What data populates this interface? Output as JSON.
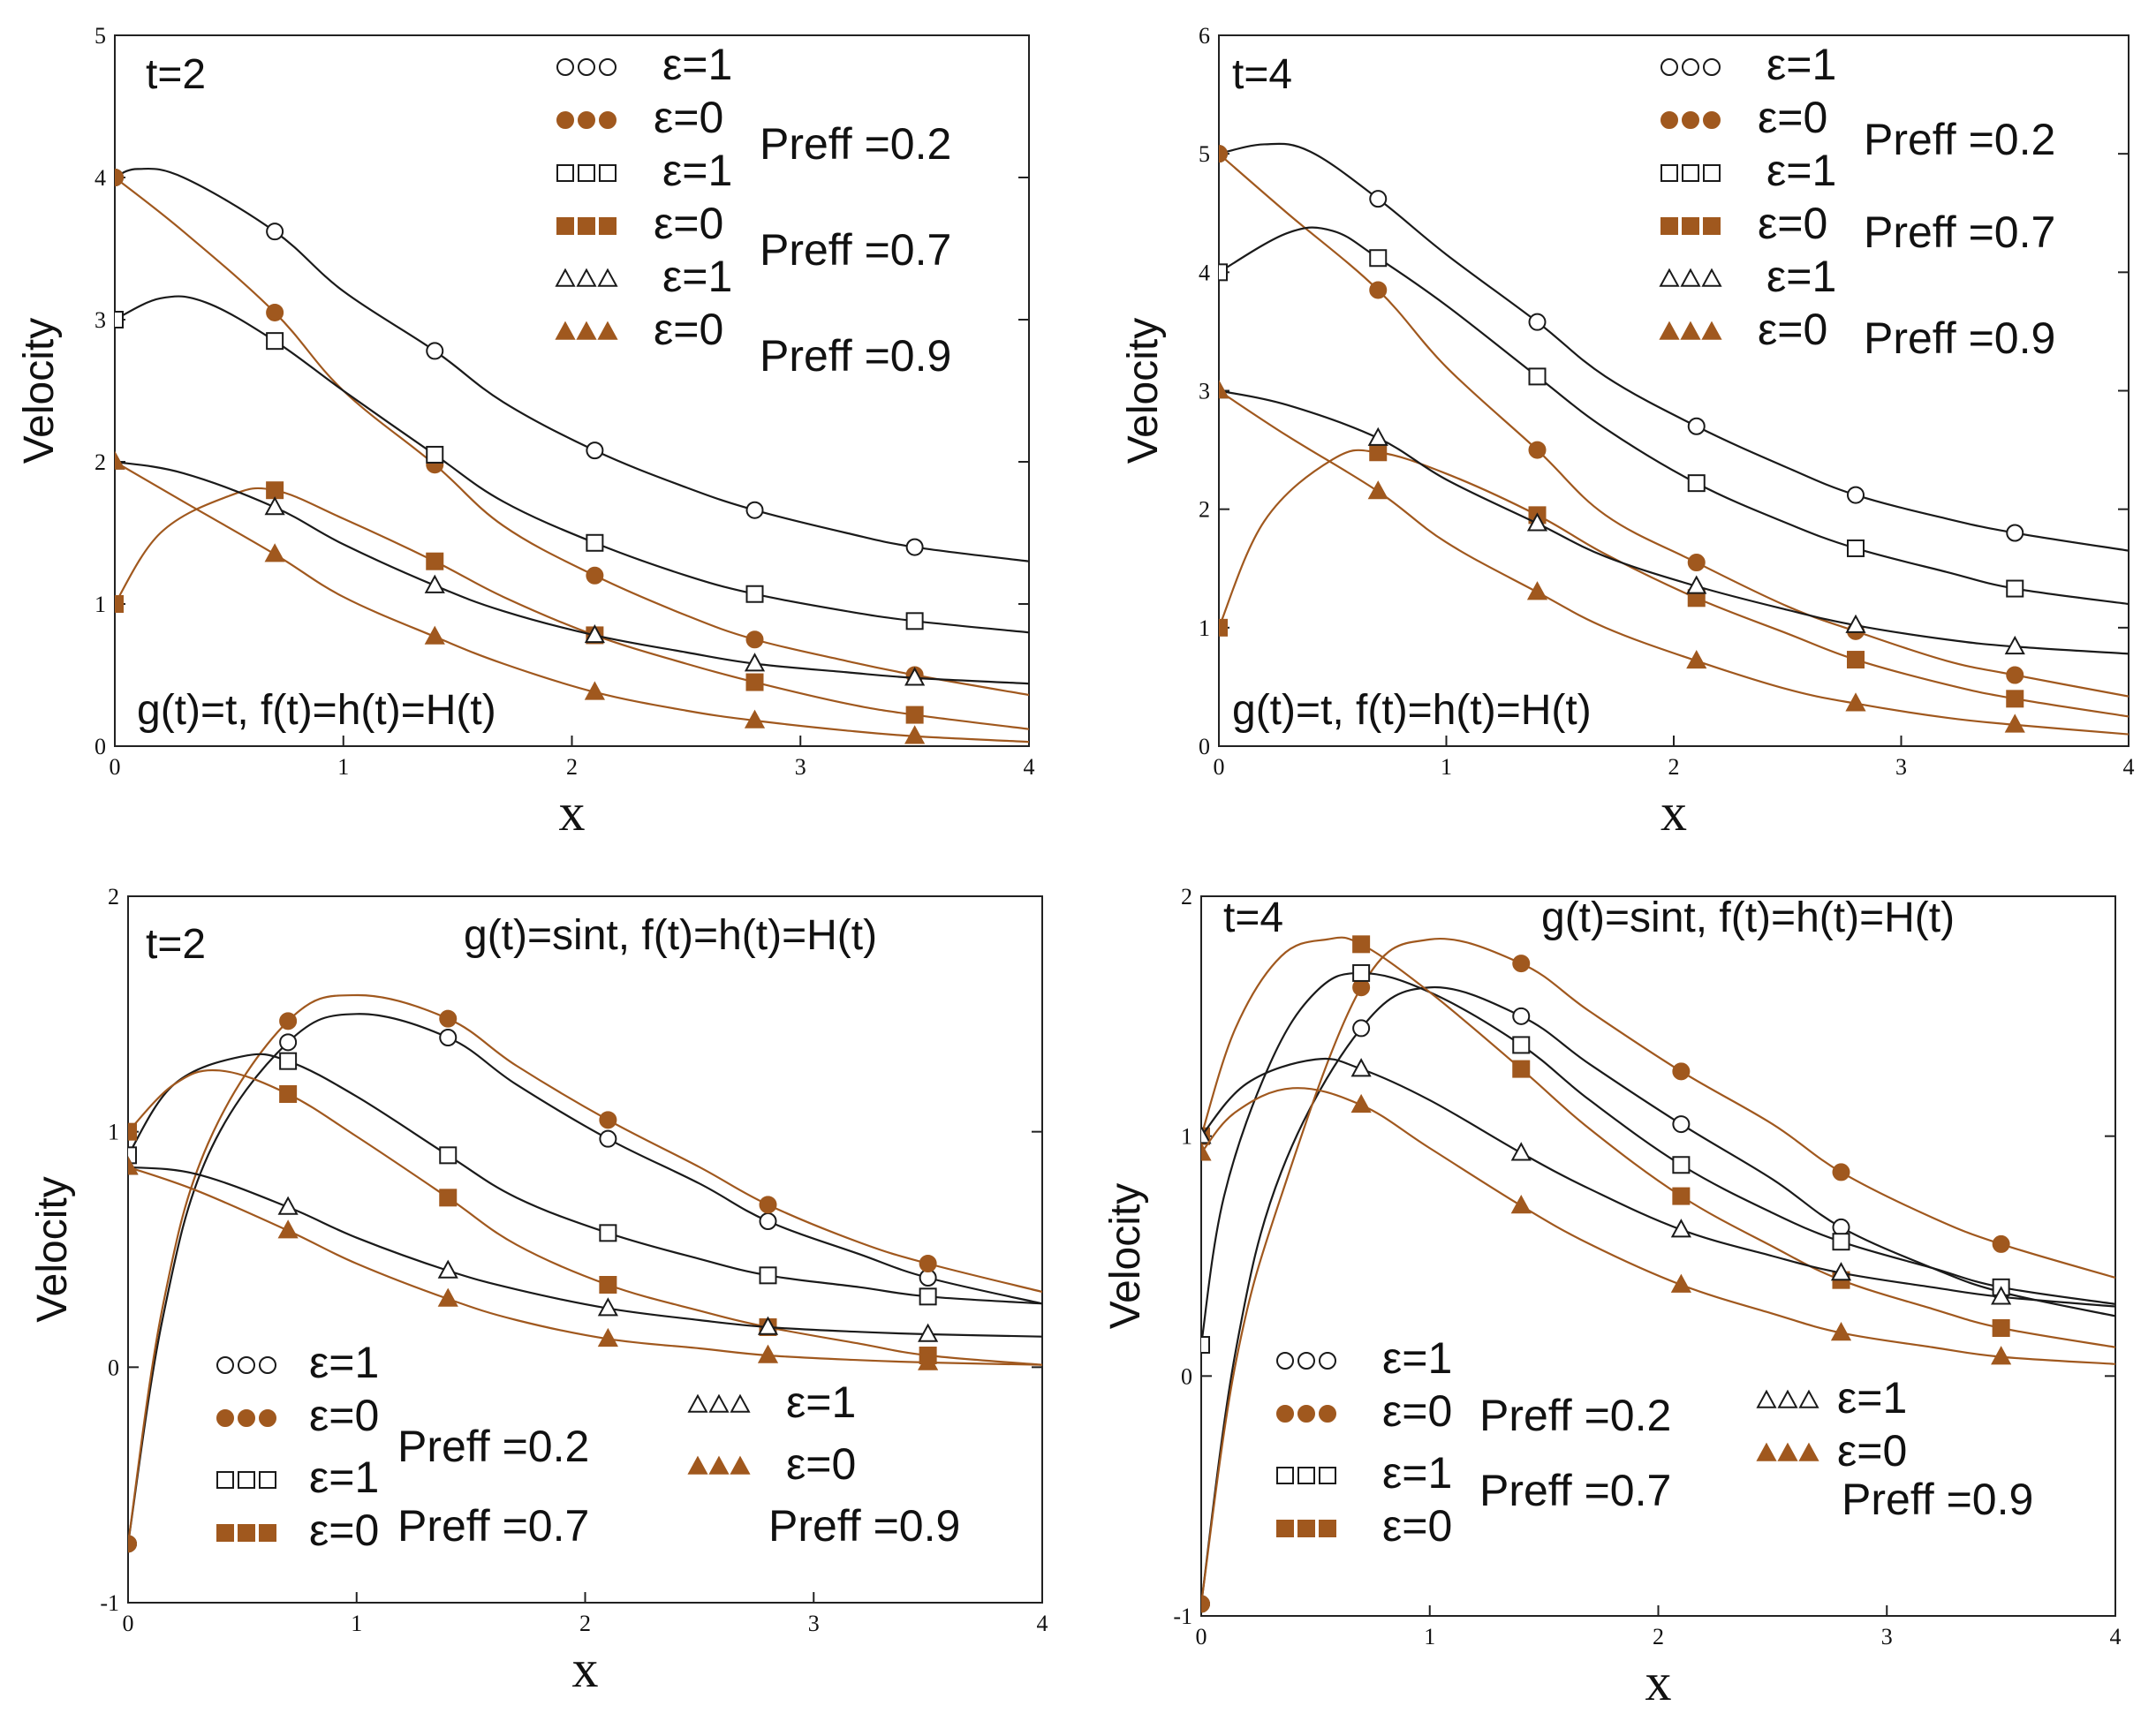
{
  "figure": {
    "colors": {
      "black": "#1a1a1a",
      "brown": "#a0581e"
    },
    "marker_names": {
      "circle-open": "circle",
      "circle-filled": "filled circle",
      "square-open": "square",
      "square-filled": "filled square",
      "triangle-open": "triangle",
      "triangle-filled": "filled triangle"
    }
  },
  "chart_data": [
    {
      "type": "line",
      "title": "t=2",
      "annotation": "g(t)=t, f(t)=h(t)=H(t)",
      "xlabel": "x",
      "ylabel": "Velocity",
      "xlim": [
        0,
        4
      ],
      "ylim": [
        0,
        5
      ],
      "xticks": [
        "0",
        "1",
        "2",
        "3",
        "4"
      ],
      "yticks": [
        "0",
        "1",
        "2",
        "3",
        "4",
        "5"
      ],
      "legend_position": "top-right",
      "pr_groups": [
        {
          "label": "Preff =0.2",
          "series_indices": [
            0,
            1
          ]
        },
        {
          "label": "Preff =0.7",
          "series_indices": [
            2,
            3
          ]
        },
        {
          "label": "Preff =0.9",
          "series_indices": [
            4,
            5
          ]
        }
      ],
      "series": [
        {
          "name": "ε=1",
          "color": "black",
          "marker": "circle-open",
          "x": [
            0,
            0.1,
            0.3,
            0.7,
            1.0,
            1.4,
            1.7,
            2.1,
            2.5,
            2.8,
            3.2,
            3.5,
            4.0
          ],
          "y": [
            4.0,
            4.06,
            4.0,
            3.62,
            3.2,
            2.78,
            2.42,
            2.08,
            1.82,
            1.66,
            1.5,
            1.4,
            1.3
          ]
        },
        {
          "name": "ε=0",
          "color": "brown",
          "marker": "circle-filled",
          "x": [
            0,
            0.3,
            0.7,
            1.0,
            1.4,
            1.7,
            2.1,
            2.5,
            2.8,
            3.2,
            3.5,
            4.0
          ],
          "y": [
            4.0,
            3.62,
            3.05,
            2.5,
            1.98,
            1.55,
            1.2,
            0.92,
            0.75,
            0.6,
            0.5,
            0.36
          ]
        },
        {
          "name": "ε=1",
          "color": "black",
          "marker": "square-open",
          "x": [
            0,
            0.2,
            0.4,
            0.7,
            1.0,
            1.4,
            1.7,
            2.1,
            2.5,
            2.8,
            3.2,
            3.5,
            4.0
          ],
          "y": [
            3.0,
            3.15,
            3.12,
            2.85,
            2.5,
            2.05,
            1.72,
            1.43,
            1.2,
            1.07,
            0.95,
            0.88,
            0.8
          ]
        },
        {
          "name": "ε=0",
          "color": "brown",
          "marker": "square-filled",
          "x": [
            0,
            0.2,
            0.5,
            0.7,
            1.0,
            1.4,
            1.7,
            2.1,
            2.5,
            2.8,
            3.2,
            3.5,
            4.0
          ],
          "y": [
            1.0,
            1.5,
            1.76,
            1.8,
            1.6,
            1.3,
            1.05,
            0.78,
            0.58,
            0.45,
            0.3,
            0.22,
            0.12
          ]
        },
        {
          "name": "ε=1",
          "color": "black",
          "marker": "triangle-open",
          "x": [
            0,
            0.3,
            0.7,
            1.0,
            1.4,
            1.7,
            2.1,
            2.5,
            2.8,
            3.2,
            3.5,
            4.0
          ],
          "y": [
            2.0,
            1.92,
            1.68,
            1.42,
            1.13,
            0.95,
            0.78,
            0.66,
            0.58,
            0.52,
            0.48,
            0.44
          ]
        },
        {
          "name": "ε=0",
          "color": "brown",
          "marker": "triangle-filled",
          "x": [
            0,
            0.3,
            0.7,
            1.0,
            1.4,
            1.7,
            2.1,
            2.5,
            2.8,
            3.2,
            3.5,
            4.0
          ],
          "y": [
            2.0,
            1.72,
            1.35,
            1.05,
            0.77,
            0.58,
            0.38,
            0.25,
            0.18,
            0.11,
            0.07,
            0.03
          ]
        }
      ]
    },
    {
      "type": "line",
      "title": "t=4",
      "annotation": "g(t)=t, f(t)=h(t)=H(t)",
      "xlabel": "x",
      "ylabel": "Velocity",
      "xlim": [
        0,
        4
      ],
      "ylim": [
        0,
        6
      ],
      "xticks": [
        "0",
        "1",
        "2",
        "3",
        "4"
      ],
      "yticks": [
        "0",
        "1",
        "2",
        "3",
        "4",
        "5",
        "6"
      ],
      "legend_position": "top-right",
      "pr_groups": [
        {
          "label": "Preff =0.2",
          "series_indices": [
            0,
            1
          ]
        },
        {
          "label": "Preff =0.7",
          "series_indices": [
            2,
            3
          ]
        },
        {
          "label": "Preff =0.9",
          "series_indices": [
            4,
            5
          ]
        }
      ],
      "series": [
        {
          "name": "ε=1",
          "color": "black",
          "marker": "circle-open",
          "x": [
            0,
            0.2,
            0.4,
            0.7,
            1.0,
            1.4,
            1.7,
            2.1,
            2.5,
            2.8,
            3.2,
            3.5,
            4.0
          ],
          "y": [
            5.0,
            5.08,
            5.02,
            4.62,
            4.15,
            3.58,
            3.12,
            2.7,
            2.35,
            2.12,
            1.92,
            1.8,
            1.65
          ]
        },
        {
          "name": "ε=0",
          "color": "brown",
          "marker": "circle-filled",
          "x": [
            0,
            0.3,
            0.7,
            1.0,
            1.4,
            1.7,
            2.1,
            2.5,
            2.8,
            3.2,
            3.5,
            4.0
          ],
          "y": [
            5.0,
            4.5,
            3.85,
            3.2,
            2.5,
            1.95,
            1.55,
            1.18,
            0.97,
            0.72,
            0.6,
            0.42
          ]
        },
        {
          "name": "ε=1",
          "color": "black",
          "marker": "square-open",
          "x": [
            0,
            0.3,
            0.5,
            0.7,
            1.0,
            1.4,
            1.7,
            2.1,
            2.5,
            2.8,
            3.2,
            3.5,
            4.0
          ],
          "y": [
            4.0,
            4.33,
            4.35,
            4.12,
            3.72,
            3.12,
            2.68,
            2.22,
            1.88,
            1.67,
            1.47,
            1.33,
            1.2
          ]
        },
        {
          "name": "ε=0",
          "color": "brown",
          "marker": "square-filled",
          "x": [
            0,
            0.2,
            0.5,
            0.7,
            1.0,
            1.4,
            1.7,
            2.1,
            2.5,
            2.8,
            3.2,
            3.5,
            4.0
          ],
          "y": [
            1.0,
            1.9,
            2.42,
            2.48,
            2.3,
            1.95,
            1.62,
            1.25,
            0.95,
            0.73,
            0.52,
            0.4,
            0.25
          ]
        },
        {
          "name": "ε=1",
          "color": "black",
          "marker": "triangle-open",
          "x": [
            0,
            0.3,
            0.7,
            1.0,
            1.4,
            1.7,
            2.1,
            2.5,
            2.8,
            3.2,
            3.5,
            4.0
          ],
          "y": [
            3.0,
            2.88,
            2.6,
            2.25,
            1.88,
            1.6,
            1.35,
            1.15,
            1.02,
            0.9,
            0.84,
            0.78
          ]
        },
        {
          "name": "ε=0",
          "color": "brown",
          "marker": "triangle-filled",
          "x": [
            0,
            0.3,
            0.7,
            1.0,
            1.4,
            1.7,
            2.1,
            2.5,
            2.8,
            3.2,
            3.5,
            4.0
          ],
          "y": [
            3.0,
            2.62,
            2.15,
            1.72,
            1.3,
            1.0,
            0.72,
            0.48,
            0.36,
            0.24,
            0.18,
            0.1
          ]
        }
      ]
    },
    {
      "type": "line",
      "title": "t=2",
      "annotation": "g(t)=sint, f(t)=h(t)=H(t)",
      "xlabel": "x",
      "ylabel": "Velocity",
      "xlim": [
        0,
        4
      ],
      "ylim": [
        -1,
        2
      ],
      "xticks": [
        "0",
        "1",
        "2",
        "3",
        "4"
      ],
      "yticks": [
        "-1",
        "0",
        "1",
        "2"
      ],
      "legend_position": "bottom",
      "pr_groups": [
        {
          "label": "Preff =0.2",
          "series_indices": [
            0,
            1
          ]
        },
        {
          "label": "Preff =0.7",
          "series_indices": [
            2,
            3
          ]
        },
        {
          "label": "Preff =0.9",
          "series_indices": [
            4,
            5
          ]
        }
      ],
      "series": [
        {
          "name": "ε=1",
          "color": "black",
          "marker": "circle-open",
          "x": [
            0,
            0.15,
            0.35,
            0.7,
            1.0,
            1.4,
            1.7,
            2.1,
            2.5,
            2.8,
            3.2,
            3.5,
            4.0
          ],
          "y": [
            -0.75,
            0.2,
            0.9,
            1.38,
            1.5,
            1.4,
            1.2,
            0.97,
            0.78,
            0.62,
            0.48,
            0.38,
            0.27
          ]
        },
        {
          "name": "ε=0",
          "color": "brown",
          "marker": "circle-filled",
          "x": [
            0,
            0.15,
            0.35,
            0.7,
            1.0,
            1.4,
            1.7,
            2.1,
            2.5,
            2.8,
            3.2,
            3.5,
            4.0
          ],
          "y": [
            -0.75,
            0.25,
            0.95,
            1.47,
            1.58,
            1.48,
            1.28,
            1.05,
            0.85,
            0.69,
            0.53,
            0.44,
            0.32
          ]
        },
        {
          "name": "ε=1",
          "color": "black",
          "marker": "square-open",
          "x": [
            0,
            0.2,
            0.5,
            0.7,
            1.0,
            1.4,
            1.7,
            2.1,
            2.5,
            2.8,
            3.2,
            3.5,
            4.0
          ],
          "y": [
            0.9,
            1.2,
            1.32,
            1.3,
            1.15,
            0.9,
            0.72,
            0.57,
            0.46,
            0.39,
            0.34,
            0.3,
            0.27
          ]
        },
        {
          "name": "ε=0",
          "color": "brown",
          "marker": "square-filled",
          "x": [
            0,
            0.2,
            0.4,
            0.7,
            1.0,
            1.4,
            1.7,
            2.1,
            2.5,
            2.8,
            3.2,
            3.5,
            4.0
          ],
          "y": [
            1.0,
            1.2,
            1.26,
            1.16,
            0.98,
            0.72,
            0.52,
            0.35,
            0.24,
            0.17,
            0.1,
            0.05,
            0.01
          ]
        },
        {
          "name": "ε=1",
          "color": "black",
          "marker": "triangle-open",
          "x": [
            0,
            0.3,
            0.7,
            1.0,
            1.4,
            1.7,
            2.1,
            2.5,
            2.8,
            3.2,
            3.5,
            4.0
          ],
          "y": [
            0.85,
            0.82,
            0.68,
            0.55,
            0.41,
            0.33,
            0.25,
            0.2,
            0.17,
            0.15,
            0.14,
            0.13
          ]
        },
        {
          "name": "ε=0",
          "color": "brown",
          "marker": "triangle-filled",
          "x": [
            0,
            0.3,
            0.7,
            1.0,
            1.4,
            1.7,
            2.1,
            2.5,
            2.8,
            3.2,
            3.5,
            4.0
          ],
          "y": [
            0.85,
            0.75,
            0.58,
            0.44,
            0.29,
            0.2,
            0.12,
            0.08,
            0.05,
            0.03,
            0.02,
            0.01
          ]
        }
      ]
    },
    {
      "type": "line",
      "title": "t=4",
      "annotation": "g(t)=sint, f(t)=h(t)=H(t)",
      "xlabel": "x",
      "ylabel": "Velocity",
      "xlim": [
        0,
        4
      ],
      "ylim": [
        -1,
        2
      ],
      "xticks": [
        "0",
        "1",
        "2",
        "3",
        "4"
      ],
      "yticks": [
        "-1",
        "0",
        "1",
        "2"
      ],
      "legend_position": "bottom",
      "pr_groups": [
        {
          "label": "Preff =0.2",
          "series_indices": [
            0,
            1
          ]
        },
        {
          "label": "Preff =0.7",
          "series_indices": [
            2,
            3
          ]
        },
        {
          "label": "Preff =0.9",
          "series_indices": [
            4,
            5
          ]
        }
      ],
      "series": [
        {
          "name": "ε=1",
          "color": "black",
          "marker": "circle-open",
          "x": [
            0,
            0.15,
            0.35,
            0.7,
            1.0,
            1.4,
            1.7,
            2.1,
            2.5,
            2.8,
            3.2,
            3.5,
            4.0
          ],
          "y": [
            -0.95,
            0.1,
            0.85,
            1.45,
            1.62,
            1.5,
            1.3,
            1.05,
            0.82,
            0.62,
            0.45,
            0.35,
            0.25
          ]
        },
        {
          "name": "ε=0",
          "color": "brown",
          "marker": "circle-filled",
          "x": [
            0,
            0.15,
            0.35,
            0.7,
            1.0,
            1.4,
            1.7,
            2.1,
            2.5,
            2.8,
            3.2,
            3.5,
            4.0
          ],
          "y": [
            -0.95,
            0.05,
            0.75,
            1.62,
            1.82,
            1.72,
            1.52,
            1.27,
            1.05,
            0.85,
            0.66,
            0.55,
            0.41
          ]
        },
        {
          "name": "ε=1",
          "color": "black",
          "marker": "square-open",
          "x": [
            0,
            0.1,
            0.3,
            0.5,
            0.7,
            1.0,
            1.4,
            1.7,
            2.1,
            2.5,
            2.8,
            3.2,
            3.5,
            4.0
          ],
          "y": [
            0.13,
            0.75,
            1.3,
            1.6,
            1.68,
            1.6,
            1.38,
            1.15,
            0.88,
            0.68,
            0.56,
            0.45,
            0.37,
            0.3
          ]
        },
        {
          "name": "ε=0",
          "color": "brown",
          "marker": "square-filled",
          "x": [
            0,
            0.15,
            0.35,
            0.55,
            0.7,
            1.0,
            1.4,
            1.7,
            2.1,
            2.5,
            2.8,
            3.2,
            3.5,
            4.0
          ],
          "y": [
            1.0,
            1.45,
            1.75,
            1.82,
            1.8,
            1.6,
            1.28,
            1.03,
            0.75,
            0.54,
            0.4,
            0.28,
            0.2,
            0.12
          ]
        },
        {
          "name": "ε=1",
          "color": "black",
          "marker": "triangle-open",
          "x": [
            0,
            0.2,
            0.5,
            0.7,
            1.0,
            1.4,
            1.7,
            2.1,
            2.5,
            2.8,
            3.2,
            3.5,
            4.0
          ],
          "y": [
            1.0,
            1.22,
            1.32,
            1.28,
            1.15,
            0.93,
            0.78,
            0.61,
            0.5,
            0.43,
            0.37,
            0.33,
            0.29
          ]
        },
        {
          "name": "ε=0",
          "color": "brown",
          "marker": "triangle-filled",
          "x": [
            0,
            0.15,
            0.4,
            0.7,
            1.0,
            1.4,
            1.7,
            2.1,
            2.5,
            2.8,
            3.2,
            3.5,
            4.0
          ],
          "y": [
            0.93,
            1.1,
            1.2,
            1.13,
            0.95,
            0.71,
            0.55,
            0.38,
            0.26,
            0.18,
            0.12,
            0.08,
            0.05
          ]
        }
      ]
    }
  ]
}
